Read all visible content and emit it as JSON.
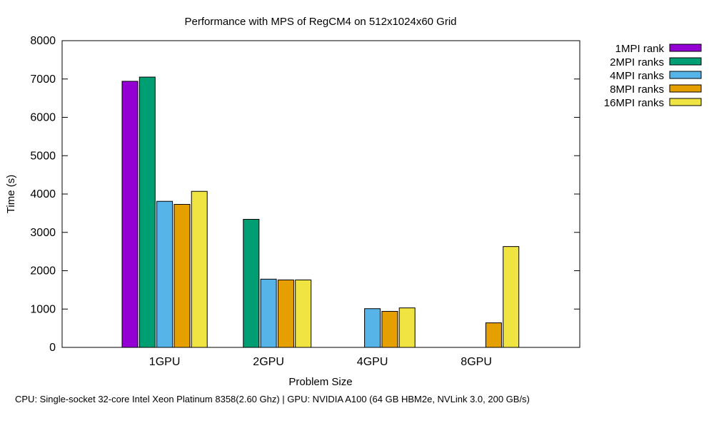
{
  "chart_data": {
    "type": "bar",
    "title": "Performance with MPS of RegCM4 on 512x1024x60 Grid",
    "xlabel": "Problem Size",
    "ylabel": "Time (s)",
    "ylim": [
      0,
      8000
    ],
    "yticks": [
      0,
      1000,
      2000,
      3000,
      4000,
      5000,
      6000,
      7000,
      8000
    ],
    "categories": [
      "1GPU",
      "2GPU",
      "4GPU",
      "8GPU"
    ],
    "series": [
      {
        "name": "1MPI rank",
        "color": "#9400d3",
        "values": [
          6940,
          null,
          null,
          null
        ]
      },
      {
        "name": "2MPI ranks",
        "color": "#009e73",
        "values": [
          7050,
          3340,
          null,
          null
        ]
      },
      {
        "name": "4MPI ranks",
        "color": "#56b4e9",
        "values": [
          3810,
          1780,
          1010,
          null
        ]
      },
      {
        "name": "8MPI ranks",
        "color": "#e69f00",
        "values": [
          3730,
          1760,
          940,
          640
        ]
      },
      {
        "name": "16MPI ranks",
        "color": "#f0e442",
        "values": [
          4070,
          1760,
          1030,
          2630
        ]
      }
    ],
    "legend_position": "top-right outside",
    "grid": false
  },
  "footnote": "CPU: Single-socket 32-core Intel Xeon Platinum 8358(2.60 Ghz) | GPU: NVIDIA A100 (64 GB HBM2e, NVLink 3.0, 200 GB/s)"
}
